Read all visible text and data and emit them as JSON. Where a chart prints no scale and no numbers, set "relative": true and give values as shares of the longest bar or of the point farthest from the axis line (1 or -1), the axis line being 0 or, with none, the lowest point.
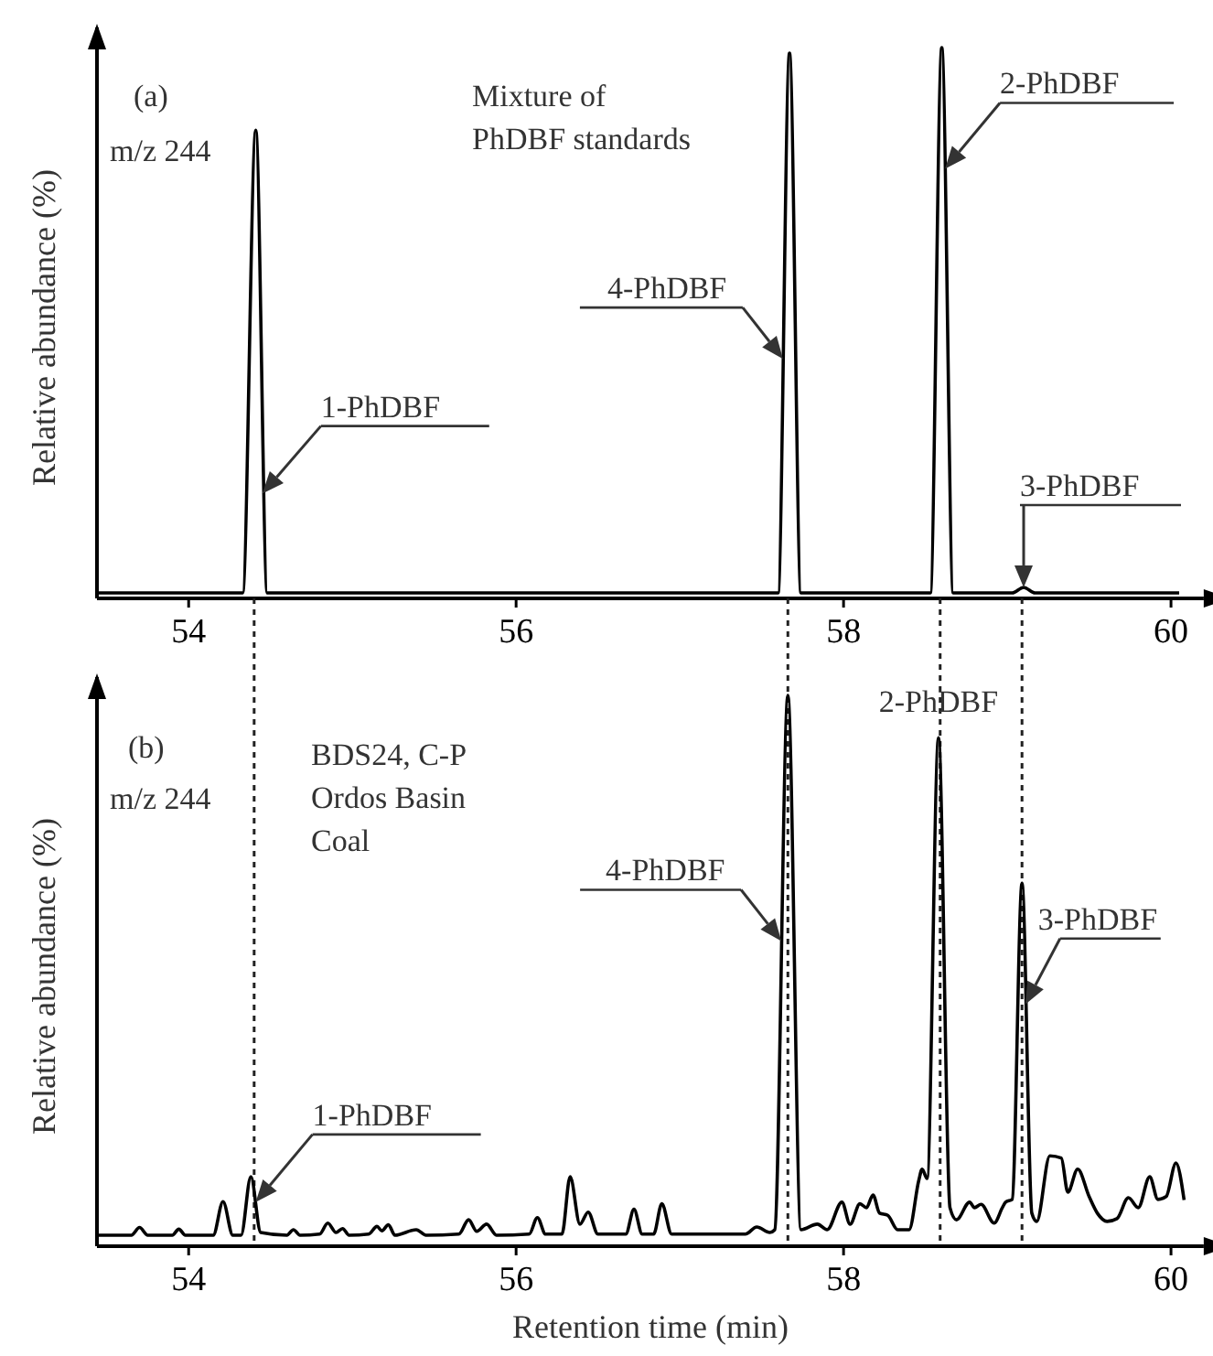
{
  "chart_data": [
    {
      "type": "line",
      "relative": true,
      "ylabel": "Relative abundance (%)",
      "xlim": [
        53.44,
        60.2
      ],
      "xticks": [
        54,
        56,
        58,
        60
      ],
      "tick_labels": "x",
      "series": [
        {
          "color": "#000000",
          "x": [
            53.44,
            54.33,
            54.41,
            54.48,
            57.6,
            57.67,
            57.74,
            58.53,
            58.6,
            58.67,
            59.03,
            59.1,
            59.17,
            60.05
          ],
          "values": [
            0.01,
            0.01,
            0.85,
            0.01,
            0.01,
            0.99,
            0.01,
            0.01,
            1,
            0.01,
            0.01,
            0.02,
            0.01,
            0.01
          ]
        }
      ],
      "annotations": [
        "(a)",
        "m/z 244",
        "Mixture of\nPhDBF standards",
        {
          "text": "1-PhDBF",
          "x": 54.45,
          "y": 0.19
        },
        {
          "text": "4-PhDBF",
          "x": 57.63,
          "y": 0.435
        },
        {
          "text": "2-PhDBF",
          "x": 58.62,
          "y": 0.78
        },
        {
          "text": "3-PhDBF",
          "x": 59.1,
          "y": 0.02
        }
      ]
    },
    {
      "type": "line",
      "relative": true,
      "ylabel": "Relative abundance (%)",
      "xlabel": "Retention time (min)",
      "xlim": [
        53.44,
        60.2
      ],
      "xticks": [
        54,
        56,
        58,
        60
      ],
      "tick_labels": "x",
      "series": [
        {
          "color": "#000000",
          "x": [
            53.44,
            53.65,
            53.7,
            53.75,
            53.9,
            53.94,
            53.98,
            54.15,
            54.21,
            54.27,
            54.32,
            54.38,
            54.44,
            54.6,
            54.64,
            54.68,
            54.8,
            54.85,
            54.9,
            54.94,
            54.98,
            55.1,
            55.15,
            55.18,
            55.22,
            55.26,
            55.39,
            55.45,
            55.65,
            55.71,
            55.76,
            55.82,
            55.88,
            56.08,
            56.13,
            56.18,
            56.28,
            56.33,
            56.39,
            56.44,
            56.5,
            56.67,
            56.72,
            56.77,
            56.84,
            56.89,
            56.95,
            57.4,
            57.47,
            57.55,
            57.58,
            57.66,
            57.74,
            57.84,
            57.9,
            57.99,
            58.04,
            58.1,
            58.14,
            58.18,
            58.22,
            58.27,
            58.33,
            58.4,
            58.46,
            58.48,
            58.51,
            58.58,
            58.65,
            58.69,
            58.77,
            58.8,
            58.84,
            58.92,
            58.97,
            58.99,
            59.03,
            59.09,
            59.15,
            59.18,
            59.26,
            59.33,
            59.37,
            59.43,
            59.5,
            59.55,
            59.61,
            59.67,
            59.74,
            59.8,
            59.87,
            59.92,
            59.97,
            60.03,
            60.08
          ],
          "values": [
            0.02,
            0.02,
            0.034,
            0.02,
            0.02,
            0.031,
            0.02,
            0.02,
            0.081,
            0.02,
            0.02,
            0.126,
            0.025,
            0.02,
            0.03,
            0.02,
            0.022,
            0.042,
            0.025,
            0.032,
            0.02,
            0.022,
            0.036,
            0.028,
            0.039,
            0.02,
            0.03,
            0.02,
            0.022,
            0.048,
            0.027,
            0.04,
            0.02,
            0.022,
            0.052,
            0.022,
            0.022,
            0.126,
            0.04,
            0.062,
            0.022,
            0.022,
            0.067,
            0.022,
            0.022,
            0.077,
            0.022,
            0.022,
            0.035,
            0.025,
            0.03,
            1,
            0.03,
            0.04,
            0.03,
            0.08,
            0.04,
            0.077,
            0.07,
            0.093,
            0.06,
            0.056,
            0.03,
            0.03,
            0.12,
            0.14,
            0.123,
            0.923,
            0.07,
            0.048,
            0.08,
            0.07,
            0.076,
            0.042,
            0.07,
            0.08,
            0.085,
            0.659,
            0.06,
            0.045,
            0.164,
            0.16,
            0.098,
            0.14,
            0.09,
            0.06,
            0.045,
            0.05,
            0.088,
            0.07,
            0.126,
            0.085,
            0.09,
            0.151,
            0.084
          ]
        }
      ],
      "ref_lines": [
        {
          "axis": "x",
          "value": 54.4,
          "line_style": "dotted"
        },
        {
          "axis": "x",
          "value": 57.66,
          "line_style": "dotted"
        },
        {
          "axis": "x",
          "value": 58.59,
          "line_style": "dotted"
        },
        {
          "axis": "x",
          "value": 59.09,
          "line_style": "dotted"
        }
      ],
      "annotations": [
        "(b)",
        "m/z 244",
        "BDS24, C-P\nOrdos Basin\nCoal",
        {
          "text": "1-PhDBF",
          "x": 54.41,
          "y": 0.08
        },
        {
          "text": "4-PhDBF",
          "x": 57.62,
          "y": 0.554
        },
        {
          "text": "2-PhDBF",
          "x": 58.58,
          "y": 0.923
        },
        {
          "text": "3-PhDBF",
          "x": 59.11,
          "y": 0.439
        }
      ]
    }
  ]
}
